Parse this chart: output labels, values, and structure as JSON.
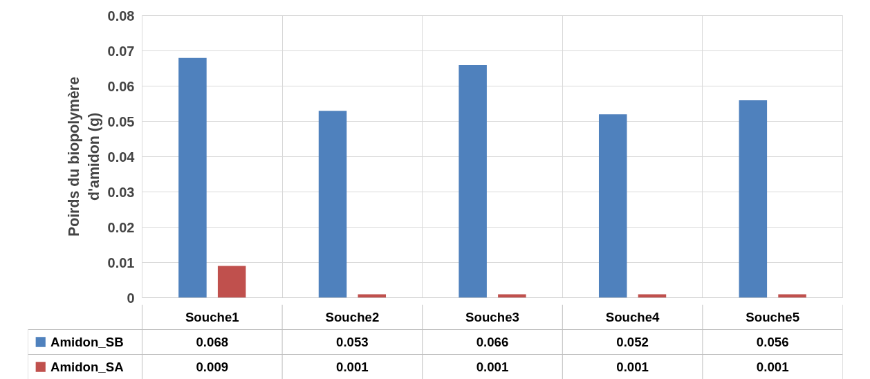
{
  "chart_data": {
    "type": "bar",
    "ylabel": "Poirds du biopolymère\nd'amidon (g)",
    "categories": [
      "Souche1",
      "Souche2",
      "Souche3",
      "Souche4",
      "Souche5"
    ],
    "series": [
      {
        "name": "Amidon_SB",
        "color": "#4f81bd",
        "values": [
          0.068,
          0.053,
          0.066,
          0.052,
          0.056
        ]
      },
      {
        "name": "Amidon_SA",
        "color": "#c0504d",
        "values": [
          0.009,
          0.001,
          0.001,
          0.001,
          0.001
        ]
      }
    ],
    "ylim": [
      0,
      0.08
    ],
    "yticks": [
      {
        "value": 0,
        "label": "0"
      },
      0.01,
      0.02,
      0.03,
      0.04,
      0.05,
      0.06,
      0.07,
      0.08
    ],
    "grid": true,
    "legend": "bottom",
    "data_labels": true
  }
}
